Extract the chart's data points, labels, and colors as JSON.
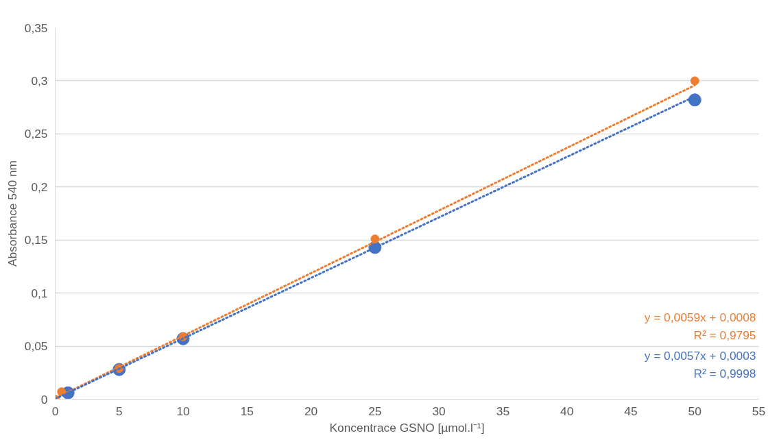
{
  "chart_data": {
    "type": "scatter",
    "xlabel": "Koncentrace GSNO [µmol.l⁻¹]",
    "ylabel": "Absorbance 540 nm",
    "series": [
      {
        "color": "#4472c4",
        "x": [
          1,
          5,
          10,
          25,
          50
        ],
        "values": [
          0.006,
          0.028,
          0.057,
          0.143,
          0.282
        ]
      },
      {
        "color": "#ed7d31",
        "x": [
          0,
          0.5,
          5,
          10,
          25,
          50
        ],
        "values": [
          0,
          0.007,
          0.029,
          0.059,
          0.151,
          0.3
        ]
      },
      {
        "type": "line",
        "x": [
          0,
          50
        ],
        "color": "#ed7d31",
        "values": [
          0.0008,
          0.2958
        ],
        "line_style": "dotted",
        "marker": "none"
      },
      {
        "type": "line",
        "x": [
          0,
          50
        ],
        "color": "#4472c4",
        "values": [
          0.0003,
          0.2853
        ],
        "line_style": "dotted",
        "marker": "none"
      }
    ],
    "annotations": [
      "y = 0,0059x + 0,0008\nR² = 0,9795",
      "y = 0,0057x + 0,0003\nR² = 0,9998"
    ],
    "marker": "circle",
    "xlim": [
      0,
      55
    ],
    "ylim": [
      0,
      0.35
    ],
    "xticks": [
      0,
      5,
      10,
      15,
      20,
      25,
      30,
      35,
      40,
      45,
      50,
      55
    ],
    "yticks": [
      0,
      {
        "value": 0.05,
        "label": "0,05"
      },
      {
        "value": 0.1,
        "label": "0,1"
      },
      {
        "value": 0.15,
        "label": "0,15"
      },
      {
        "value": 0.2,
        "label": "0,2"
      },
      {
        "value": 0.25,
        "label": "0,25"
      },
      {
        "value": 0.3,
        "label": "0,3"
      },
      {
        "value": 0.35,
        "label": "0,35"
      }
    ],
    "grid": "y"
  }
}
